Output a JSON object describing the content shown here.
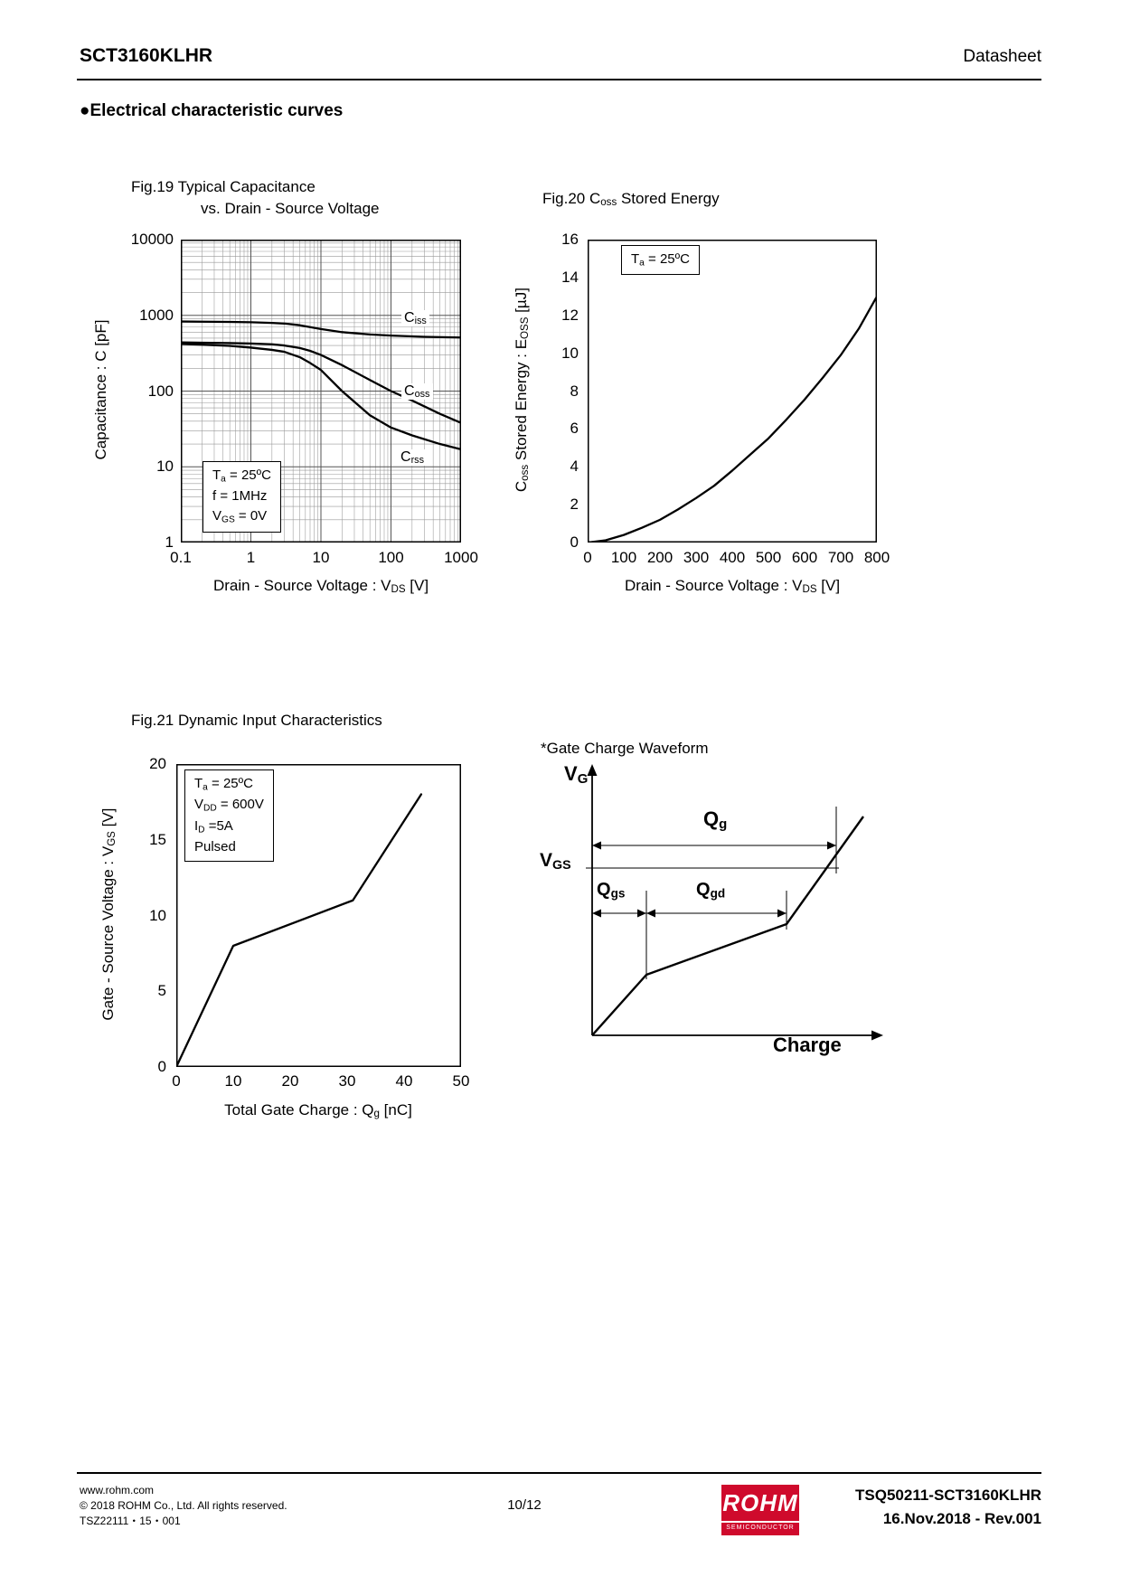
{
  "header": {
    "title": "SCT3160KLHR",
    "doc_type": "Datasheet"
  },
  "section": {
    "title": "●Electrical characteristic curves"
  },
  "fig19": {
    "title_line1": "Fig.19 Typical Capacitance",
    "title_line2": "vs. Drain - Source Voltage",
    "ylabel": "Capacitance : C [pF]",
    "xlabel": [
      "Drain - Source Voltage : V",
      "DS",
      " [V]"
    ],
    "y_ticks": [
      "10000",
      "1000",
      "100",
      "10",
      "1"
    ],
    "x_ticks": [
      "0.1",
      "1",
      "10",
      "100",
      "1000"
    ],
    "annotation": {
      "line1": [
        "T",
        "a",
        " = 25ºC"
      ],
      "line2": "f = 1MHz",
      "line3": [
        "V",
        "GS",
        " = 0V"
      ]
    },
    "curve_labels": {
      "ciss": [
        "C",
        "iss"
      ],
      "coss": [
        "C",
        "oss"
      ],
      "crss": [
        "C",
        "rss"
      ]
    }
  },
  "fig20": {
    "title": [
      "Fig.20 C",
      "oss",
      " Stored Energy"
    ],
    "ylabel": [
      "C",
      "oss",
      " Stored Energy : E",
      "OSS",
      " [µJ]"
    ],
    "xlabel": [
      "Drain - Source Voltage : V",
      "DS",
      " [V]"
    ],
    "annotation": [
      "T",
      "a",
      " = 25ºC"
    ],
    "y_ticks": [
      "16",
      "14",
      "12",
      "10",
      "8",
      "6",
      "4",
      "2",
      "0"
    ],
    "x_ticks": [
      "0",
      "100",
      "200",
      "300",
      "400",
      "500",
      "600",
      "700",
      "800"
    ]
  },
  "fig21": {
    "title": "Fig.21 Dynamic Input Characteristics",
    "ylabel": [
      "Gate - Source Voltage : V",
      "GS",
      " [V]"
    ],
    "xlabel": [
      "Total Gate Charge : Q",
      "g",
      " [nC]"
    ],
    "annotation": {
      "line1": [
        "T",
        "a",
        " = 25ºC"
      ],
      "line2": [
        "V",
        "DD",
        " = 600V"
      ],
      "line3": [
        "I",
        "D",
        " =5A"
      ],
      "line4": "Pulsed"
    },
    "y_ticks": [
      "20",
      "15",
      "10",
      "5",
      "0"
    ],
    "x_ticks": [
      "0",
      "10",
      "20",
      "30",
      "40",
      "50"
    ]
  },
  "waveform": {
    "title": "*Gate Charge Waveform",
    "vg_label": [
      "V",
      "G"
    ],
    "vgs_label": [
      "V",
      "GS"
    ],
    "qg_label": [
      "Q",
      "g"
    ],
    "qgs_label": [
      "Q",
      "gs"
    ],
    "qgd_label": [
      "Q",
      "gd"
    ],
    "x_axis_label": "Charge"
  },
  "footer": {
    "website": "www.rohm.com",
    "copyright": "© 2018 ROHM Co., Ltd. All rights reserved.",
    "doc_code": "TSZ22111・15・001",
    "page": "10/12",
    "logo_text": "ROHM",
    "logo_subtext": "SEMICONDUCTOR",
    "doc_number": "TSQ50211-SCT3160KLHR",
    "revision": "16.Nov.2018 - Rev.001"
  },
  "chart_data": [
    {
      "id": "fig19",
      "type": "line",
      "title": "Fig.19 Typical Capacitance vs. Drain - Source Voltage",
      "xlabel": "Drain - Source Voltage : VDS [V]",
      "ylabel": "Capacitance : C [pF]",
      "xscale": "log",
      "yscale": "log",
      "xlim": [
        0.1,
        1000
      ],
      "ylim": [
        1,
        10000
      ],
      "grid": true,
      "conditions": "Ta = 25ºC, f = 1MHz, VGS = 0V",
      "series": [
        {
          "name": "Ciss",
          "x": [
            0.1,
            0.2,
            0.5,
            1,
            2,
            3,
            5,
            7,
            10,
            20,
            50,
            100,
            300,
            1000
          ],
          "y": [
            830,
            825,
            820,
            810,
            795,
            780,
            740,
            700,
            660,
            600,
            560,
            540,
            520,
            510
          ]
        },
        {
          "name": "Coss",
          "x": [
            0.1,
            0.2,
            0.5,
            1,
            2,
            3,
            5,
            7,
            10,
            20,
            50,
            100,
            200,
            500,
            1000
          ],
          "y": [
            440,
            435,
            430,
            425,
            415,
            400,
            370,
            340,
            300,
            220,
            140,
            100,
            75,
            50,
            38
          ]
        },
        {
          "name": "Crss",
          "x": [
            0.1,
            0.2,
            0.5,
            1,
            2,
            3,
            5,
            7,
            10,
            20,
            50,
            100,
            200,
            500,
            1000
          ],
          "y": [
            420,
            410,
            395,
            375,
            350,
            330,
            280,
            235,
            190,
            100,
            48,
            33,
            26,
            20,
            17
          ]
        }
      ]
    },
    {
      "id": "fig20",
      "type": "line",
      "title": "Fig.20 Coss Stored Energy",
      "xlabel": "Drain - Source Voltage : VDS [V]",
      "ylabel": "Coss Stored Energy : EOSS [µJ]",
      "xlim": [
        0,
        800
      ],
      "ylim": [
        0,
        16
      ],
      "grid": false,
      "conditions": "Ta = 25ºC",
      "series": [
        {
          "name": "EOSS",
          "x": [
            0,
            50,
            100,
            150,
            200,
            250,
            300,
            350,
            400,
            450,
            500,
            550,
            600,
            650,
            700,
            750,
            800
          ],
          "y": [
            0,
            0.12,
            0.4,
            0.78,
            1.2,
            1.75,
            2.35,
            3.0,
            3.8,
            4.65,
            5.5,
            6.5,
            7.55,
            8.7,
            9.9,
            11.3,
            13.0
          ]
        }
      ]
    },
    {
      "id": "fig21",
      "type": "line",
      "title": "Fig.21 Dynamic Input Characteristics",
      "xlabel": "Total Gate Charge : Qg [nC]",
      "ylabel": "Gate - Source Voltage : VGS [V]",
      "xlim": [
        0,
        50
      ],
      "ylim": [
        0,
        20
      ],
      "grid": false,
      "conditions": "Ta = 25ºC, VDD = 600V, ID = 5A, Pulsed",
      "series": [
        {
          "name": "VGS",
          "x": [
            0,
            10,
            31,
            43
          ],
          "y": [
            0,
            8,
            11,
            18
          ]
        }
      ]
    },
    {
      "id": "gate-charge-waveform",
      "type": "diagram",
      "title": "*Gate Charge Waveform",
      "xlabel": "Charge",
      "ylabel": "VG",
      "annotations": [
        "Qg",
        "Qgs",
        "Qgd",
        "VGS"
      ]
    }
  ]
}
